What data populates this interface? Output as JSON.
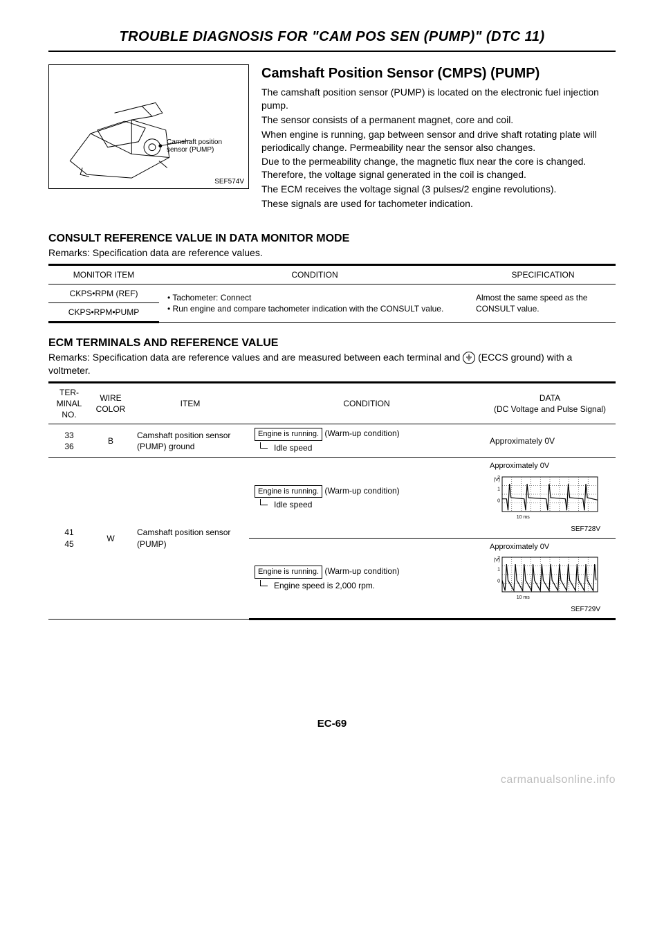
{
  "page": {
    "title": "TROUBLE DIAGNOSIS FOR \"CAM POS SEN (PUMP)\" (DTC 11)",
    "number": "EC-69",
    "watermark": "carmanualsonline.info"
  },
  "diagram": {
    "sensor_label": "Camshaft position\nsensor (PUMP)",
    "fig_code": "SEF574V"
  },
  "intro": {
    "heading": "Camshaft Position Sensor (CMPS) (PUMP)",
    "p1": "The camshaft position sensor (PUMP) is located on the electronic fuel injection pump.",
    "p2": "The sensor consists of a permanent magnet, core and coil.",
    "p3": "When engine is running, gap between sensor and drive shaft rotating plate will periodically change. Permeability near the sensor also changes.",
    "p4": "Due to the permeability change, the magnetic flux near the core is changed. Therefore, the voltage signal generated in the coil is changed.",
    "p5": "The ECM receives the voltage signal (3 pulses/2 engine revolutions).",
    "p6": "These signals are used for tachometer indication."
  },
  "consult": {
    "heading": "CONSULT REFERENCE VALUE IN DATA MONITOR MODE",
    "remarks": "Remarks: Specification data are reference values.",
    "headers": {
      "c1": "MONITOR ITEM",
      "c2": "CONDITION",
      "c3": "SPECIFICATION"
    },
    "rows": {
      "r1": "CKPS•RPM (REF)",
      "r2": "CKPS•RPM•PUMP"
    },
    "condition": {
      "b1": "Tachometer: Connect",
      "b2": "Run engine and compare tachometer indication with the CONSULT value."
    },
    "spec": "Almost the same speed as the CONSULT value."
  },
  "ecm": {
    "heading": "ECM TERMINALS AND REFERENCE VALUE",
    "remarks_a": "Remarks: Specification data are reference values and are measured between each terminal and ",
    "remarks_b": " (ECCS ground) with a voltmeter.",
    "ground_symbol": "⏚",
    "headers": {
      "c1": "TER-\nMINAL\nNO.",
      "c2": "WIRE\nCOLOR",
      "c3": "ITEM",
      "c4": "CONDITION",
      "c5": "DATA\n(DC Voltage and Pulse Signal)"
    },
    "row1": {
      "term": "33\n36",
      "wire": "B",
      "item": "Camshaft position sensor (PUMP) ground",
      "cond_box": "Engine is running.",
      "cond_note": "(Warm-up condition)",
      "cond_sub": "Idle speed",
      "data": "Approximately 0V"
    },
    "row2": {
      "term": "41\n45",
      "wire": "W",
      "item": "Camshaft position sensor (PUMP)",
      "cond_a_box": "Engine is running.",
      "cond_a_note": "(Warm-up condition)",
      "cond_a_sub": "Idle speed",
      "data_a_label": "Approximately 0V",
      "wave_a": {
        "code": "SEF728V",
        "y_labels": [
          "(V)",
          "2",
          "1",
          "0"
        ],
        "x_label": "10 ms",
        "color": "#000000",
        "grid_color": "#000000",
        "line_width": 1.2,
        "type": "waveform",
        "points": [
          [
            0,
            0.1
          ],
          [
            6,
            0.1
          ],
          [
            8,
            -0.9
          ],
          [
            10,
            1.4
          ],
          [
            12,
            0.2
          ],
          [
            30,
            0.1
          ],
          [
            32,
            -0.9
          ],
          [
            34,
            1.4
          ],
          [
            36,
            0.2
          ],
          [
            60,
            0.1
          ],
          [
            62,
            -0.9
          ],
          [
            64,
            1.4
          ],
          [
            66,
            0.2
          ],
          [
            86,
            0.1
          ],
          [
            88,
            -0.9
          ],
          [
            90,
            1.4
          ],
          [
            92,
            0.2
          ],
          [
            110,
            0.1
          ],
          [
            112,
            -0.9
          ],
          [
            114,
            1.4
          ],
          [
            116,
            0.2
          ],
          [
            130,
            0.0
          ]
        ],
        "ylim": [
          -1,
          2
        ],
        "xlim": [
          0,
          130
        ]
      },
      "cond_b_box": "Engine is running.",
      "cond_b_note": "(Warm-up condition)",
      "cond_b_sub": "Engine speed is 2,000 rpm.",
      "data_b_label": "Approximately 0V",
      "wave_b": {
        "code": "SEF729V",
        "y_labels": [
          "(V)",
          "2",
          "1",
          "0"
        ],
        "x_label": "10 ms",
        "color": "#000000",
        "grid_color": "#000000",
        "line_width": 1.2,
        "type": "waveform",
        "points": [
          [
            0,
            0
          ],
          [
            4,
            -0.9
          ],
          [
            6,
            1.4
          ],
          [
            8,
            0
          ],
          [
            16,
            -0.9
          ],
          [
            18,
            1.4
          ],
          [
            20,
            0
          ],
          [
            28,
            -0.9
          ],
          [
            30,
            1.4
          ],
          [
            32,
            0
          ],
          [
            40,
            -0.9
          ],
          [
            42,
            1.4
          ],
          [
            44,
            0
          ],
          [
            52,
            -0.9
          ],
          [
            54,
            1.4
          ],
          [
            56,
            0
          ],
          [
            64,
            -0.9
          ],
          [
            66,
            1.4
          ],
          [
            68,
            0
          ],
          [
            76,
            -0.9
          ],
          [
            78,
            1.4
          ],
          [
            80,
            0
          ],
          [
            88,
            -0.9
          ],
          [
            90,
            1.4
          ],
          [
            92,
            0
          ],
          [
            100,
            -0.9
          ],
          [
            102,
            1.4
          ],
          [
            104,
            0
          ],
          [
            112,
            -0.9
          ],
          [
            114,
            1.4
          ],
          [
            116,
            0
          ],
          [
            124,
            -0.9
          ],
          [
            126,
            1.4
          ],
          [
            128,
            0
          ]
        ],
        "ylim": [
          -1,
          2
        ],
        "xlim": [
          0,
          130
        ]
      }
    }
  }
}
